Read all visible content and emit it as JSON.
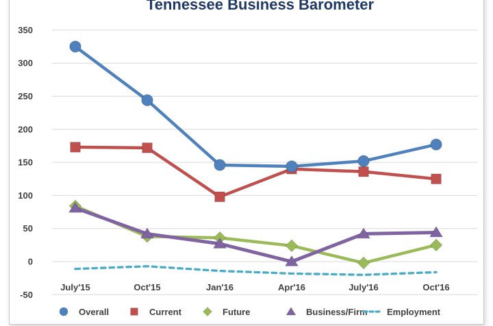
{
  "title": "Tennessee Business Barometer",
  "chart_data": {
    "type": "line",
    "title": "Tennessee Business Barometer",
    "categories": [
      "July'15",
      "Oct'15",
      "Jan'16",
      "Apr'16",
      "July'16",
      "Oct'16"
    ],
    "series": [
      {
        "name": "Overall",
        "color": "#4F81BD",
        "marker": "circle",
        "line_style": "solid",
        "values": [
          325,
          244,
          146,
          144,
          152,
          177
        ]
      },
      {
        "name": "Current",
        "color": "#C0504D",
        "marker": "square",
        "line_style": "solid",
        "values": [
          173,
          172,
          98,
          140,
          136,
          125
        ]
      },
      {
        "name": "Future",
        "color": "#9BBB59",
        "marker": "diamond",
        "line_style": "solid",
        "values": [
          84,
          38,
          36,
          24,
          -2,
          25
        ]
      },
      {
        "name": "Business/Firm",
        "color": "#8064A2",
        "marker": "triangle",
        "line_style": "solid",
        "values": [
          81,
          42,
          27,
          0,
          42,
          44
        ]
      },
      {
        "name": "Employment",
        "color": "#4BACC6",
        "marker": "none",
        "line_style": "dashed",
        "values": [
          -11,
          -7,
          -14,
          -18,
          -20,
          -16
        ]
      }
    ],
    "ylim": [
      -50,
      350
    ],
    "yticks": [
      350,
      300,
      250,
      200,
      150,
      100,
      50,
      0,
      -50
    ],
    "grid": true,
    "legend_position": "bottom"
  },
  "style": {
    "title_color": "#1F3864",
    "grid_color": "#D9D9D9",
    "tick_label_color": "#404040",
    "background": "#FFFFFF",
    "frame_border_color": "#C6C6C6"
  }
}
